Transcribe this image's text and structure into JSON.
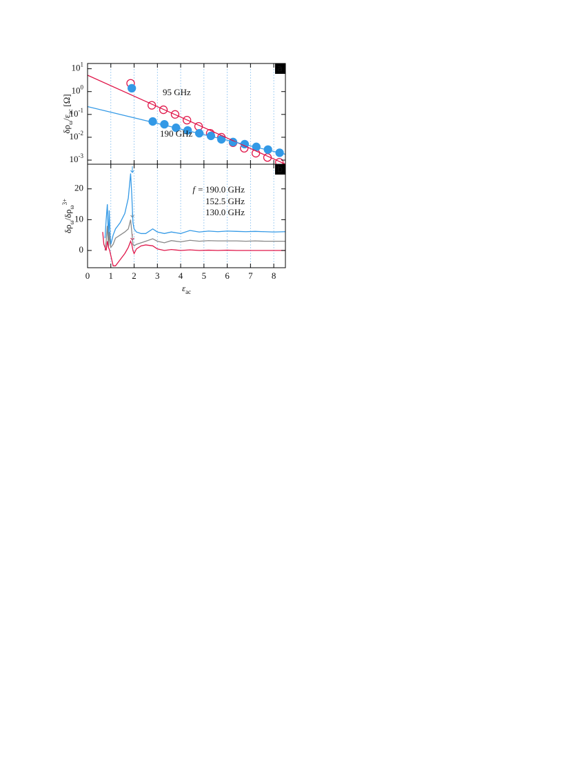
{
  "chart_data": [
    {
      "type": "scatter",
      "panel": "a",
      "ylabel_parts": [
        {
          "text": "δρ"
        },
        {
          "text": "ω",
          "shift": "sub"
        },
        {
          "text": "/ε"
        },
        {
          "text": "ac",
          "shift": "sub"
        },
        {
          "text": " [Ω]"
        }
      ],
      "log_y": true,
      "ylim": [
        0.00066,
        17
      ],
      "yticks": [
        {
          "value": 0.001,
          "label": "10",
          "exponent": "-3"
        },
        {
          "value": 0.01,
          "label": "10",
          "exponent": "-2"
        },
        {
          "value": 0.1,
          "label": "10",
          "exponent": "-1"
        },
        {
          "value": 1,
          "label": "10",
          "exponent": "0"
        },
        {
          "value": 10,
          "label": "10",
          "exponent": "1"
        }
      ],
      "xlim": [
        0,
        8.5
      ],
      "xticks": [
        0,
        1,
        2,
        3,
        4,
        5,
        6,
        7,
        8
      ],
      "xgrid": true,
      "series": [
        {
          "name": "95 GHz",
          "color": "#e0174a",
          "marker": "open",
          "x": [
            1.85,
            2.76,
            3.26,
            3.76,
            4.27,
            4.77,
            5.27,
            5.75,
            6.25,
            6.73,
            7.23,
            7.73,
            8.24
          ],
          "values": [
            2.3,
            0.25,
            0.16,
            0.1,
            0.056,
            0.03,
            0.015,
            0.01,
            0.0058,
            0.0033,
            0.002,
            0.0013,
            0.0008
          ]
        },
        {
          "name": "190 GHz",
          "color": "#3399e6",
          "marker": "filled",
          "x": [
            1.9,
            2.8,
            3.3,
            3.8,
            4.3,
            4.8,
            5.3,
            5.75,
            6.25,
            6.75,
            7.25,
            7.75,
            8.25
          ],
          "values": [
            1.4,
            0.049,
            0.037,
            0.026,
            0.02,
            0.015,
            0.0115,
            0.0081,
            0.0062,
            0.005,
            0.0038,
            0.0029,
            0.0021
          ]
        },
        {
          "type": "line",
          "color": "#e0174a",
          "x": [
            0,
            8.5
          ],
          "values": [
            5.2,
            0.00066
          ]
        },
        {
          "type": "line",
          "color": "#3399e6",
          "x": [
            0,
            8.5
          ],
          "values": [
            0.22,
            0.0018
          ]
        }
      ]
    },
    {
      "type": "line",
      "panel": "b",
      "ylabel_parts": [
        {
          "text": "δρ"
        },
        {
          "text": "ω",
          "shift": "sub"
        },
        {
          "text": "/δρ"
        },
        {
          "text": "ω",
          "shift": "sub"
        },
        {
          "text": "3+",
          "shift": "super"
        }
      ],
      "xlabel_parts": [
        {
          "text": "ε",
          "italic": true
        },
        {
          "text": "ac",
          "shift": "sub"
        }
      ],
      "ylim": [
        -5.6,
        28
      ],
      "yticks": [
        0,
        10,
        20
      ],
      "xlim": [
        0,
        8.5
      ],
      "xticks": [
        0,
        1,
        2,
        3,
        4,
        5,
        6,
        7,
        8
      ],
      "xgrid": true,
      "legend_title": "f =",
      "series": [
        {
          "name": "190.0 GHz",
          "color": "#3399e6",
          "x": [
            0.75,
            0.8,
            0.85,
            0.9,
            0.93,
            0.97,
            1.0,
            1.1,
            1.2,
            1.4,
            1.6,
            1.75,
            1.85,
            1.9,
            1.95,
            2.0,
            2.1,
            2.3,
            2.5,
            2.8,
            3.0,
            3.3,
            3.6,
            4.0,
            4.4,
            4.8,
            5.2,
            5.6,
            6.0,
            6.4,
            6.8,
            7.2,
            7.6,
            8.0,
            8.5
          ],
          "values": [
            4,
            10,
            15,
            3,
            13,
            5,
            2,
            5,
            7,
            9,
            12,
            17,
            25,
            18,
            9,
            7,
            6,
            5.5,
            5.5,
            7,
            6,
            5.5,
            6,
            5.5,
            6.5,
            6,
            6.3,
            6.1,
            6.3,
            6.2,
            6.1,
            6.2,
            6.1,
            6,
            6.1
          ]
        },
        {
          "name": "152.5 GHz",
          "color": "#888888",
          "x": [
            0.75,
            0.8,
            0.85,
            0.9,
            0.93,
            0.97,
            1.0,
            1.1,
            1.2,
            1.4,
            1.6,
            1.75,
            1.85,
            1.9,
            1.95,
            2.0,
            2.1,
            2.3,
            2.5,
            2.8,
            3.0,
            3.3,
            3.6,
            4.0,
            4.4,
            4.8,
            5.2,
            5.6,
            6.0,
            6.4,
            6.8,
            7.2,
            7.6,
            8.0,
            8.5
          ],
          "values": [
            0,
            3,
            8,
            1,
            6,
            2,
            1,
            2,
            4,
            5,
            6,
            7,
            10,
            6,
            2,
            1.5,
            2,
            2.5,
            3,
            3.8,
            3,
            2.5,
            3.2,
            2.8,
            3.3,
            3,
            3.2,
            3.1,
            3.1,
            3.1,
            3,
            3.1,
            3,
            3,
            3
          ]
        },
        {
          "name": "130.0 GHz",
          "color": "#e0174a",
          "x": [
            0.65,
            0.7,
            0.75,
            0.8,
            0.85,
            0.9,
            0.95,
            1.1,
            1.2,
            1.4,
            1.6,
            1.75,
            1.85,
            1.9,
            1.95,
            2.0,
            2.1,
            2.3,
            2.5,
            2.8,
            3.0,
            3.3,
            3.6,
            4.0,
            4.4,
            4.8,
            5.2,
            5.6,
            6.0,
            6.4,
            6.8,
            7.2,
            7.6,
            8.0,
            8.5
          ],
          "values": [
            6,
            2,
            1,
            0,
            3,
            1,
            0,
            -5,
            -5,
            -3,
            -1,
            1,
            3,
            2,
            0,
            -1,
            0.5,
            1.5,
            1.8,
            1.5,
            0.5,
            0,
            0.3,
            0,
            0.2,
            0,
            0.1,
            0,
            0.1,
            0,
            0,
            0,
            0,
            0,
            0
          ]
        }
      ]
    }
  ]
}
